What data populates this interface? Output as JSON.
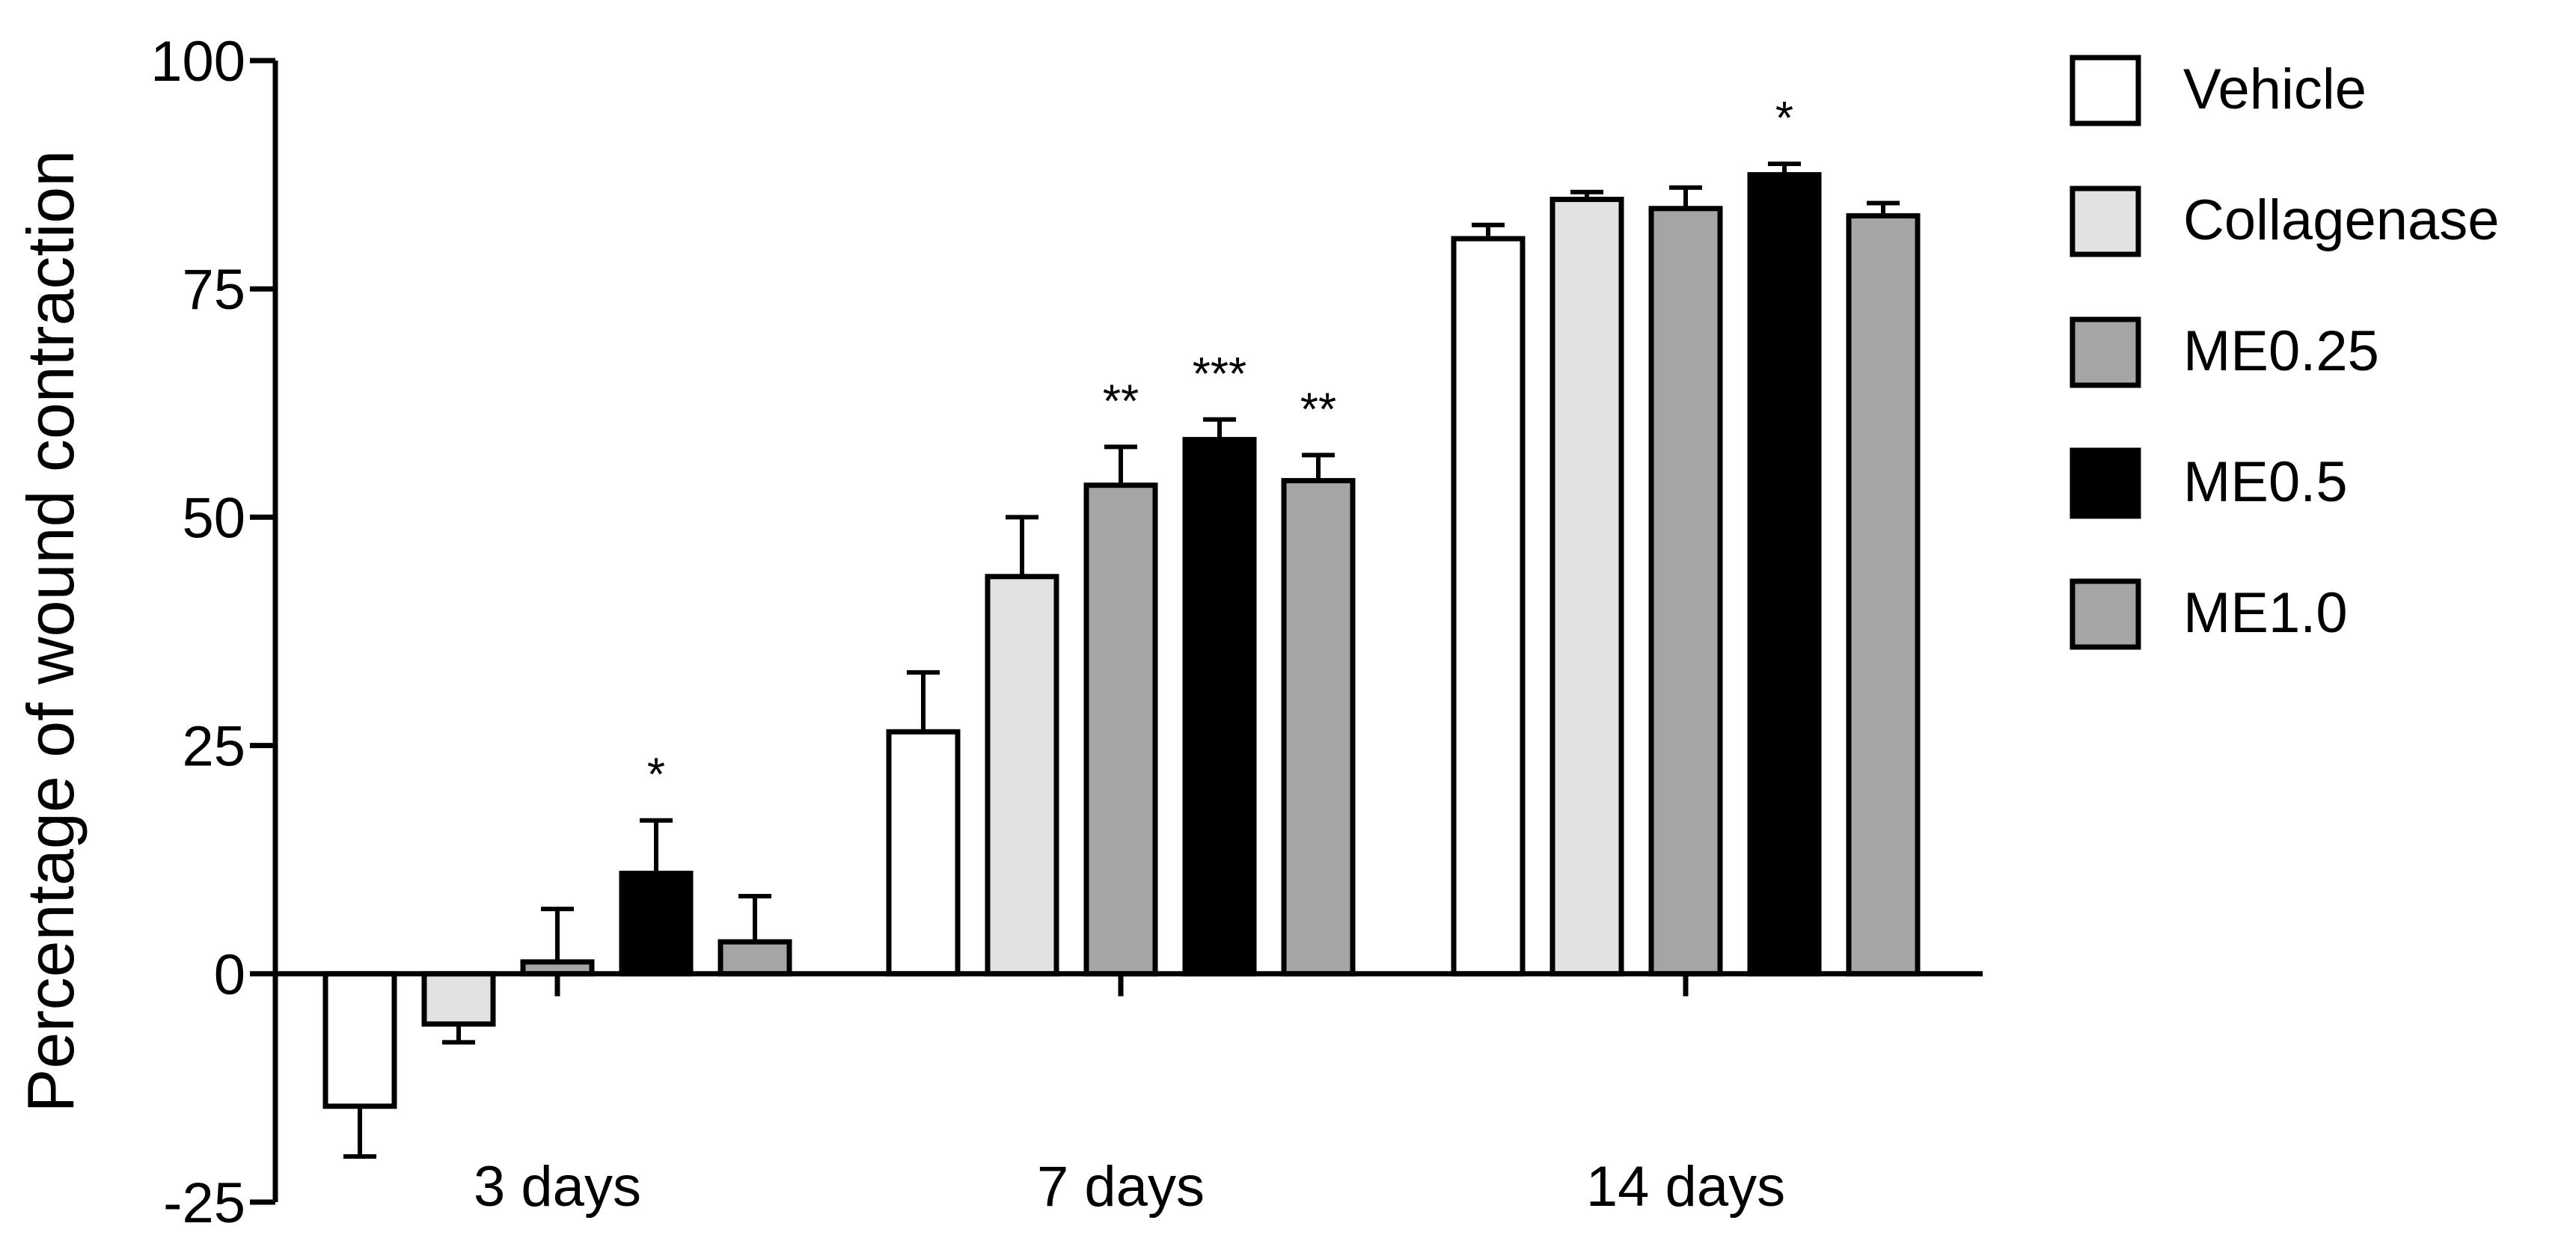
{
  "chart_data": {
    "type": "bar",
    "title": "",
    "xlabel": "",
    "ylabel": "Percentage of wound contraction",
    "ylim": [
      -25,
      100
    ],
    "yticks": [
      -25,
      0,
      25,
      50,
      75,
      100
    ],
    "grid": false,
    "legend_position": "right",
    "categories": [
      "3 days",
      "7 days",
      "14 days"
    ],
    "series": [
      {
        "name": "Vehicle",
        "color": "#ffffff",
        "values": [
          -14.5,
          26.5,
          80.5
        ],
        "errors": [
          5.5,
          6.5,
          1.5
        ],
        "significance": [
          "",
          "",
          ""
        ]
      },
      {
        "name": "Collagenase",
        "color": "#e2e2e2",
        "values": [
          -5.5,
          43.5,
          84.8
        ],
        "errors": [
          2.0,
          6.5,
          0.8
        ],
        "significance": [
          "",
          "",
          ""
        ]
      },
      {
        "name": "ME0.25",
        "color": "#a5a5a8",
        "values": [
          1.3,
          53.5,
          83.8
        ],
        "errors": [
          5.8,
          4.2,
          2.3
        ],
        "significance": [
          "",
          "**",
          ""
        ]
      },
      {
        "name": "ME0.5",
        "color": "#000000",
        "values": [
          11.0,
          58.5,
          87.5
        ],
        "errors": [
          5.8,
          2.2,
          1.2
        ],
        "significance": [
          "*",
          "***",
          "*"
        ]
      },
      {
        "name": "ME1.0",
        "color": "#a5a5a8",
        "values": [
          3.5,
          54.0,
          83.0
        ],
        "errors": [
          5.0,
          2.8,
          1.4
        ],
        "significance": [
          "",
          "**",
          ""
        ]
      }
    ]
  }
}
